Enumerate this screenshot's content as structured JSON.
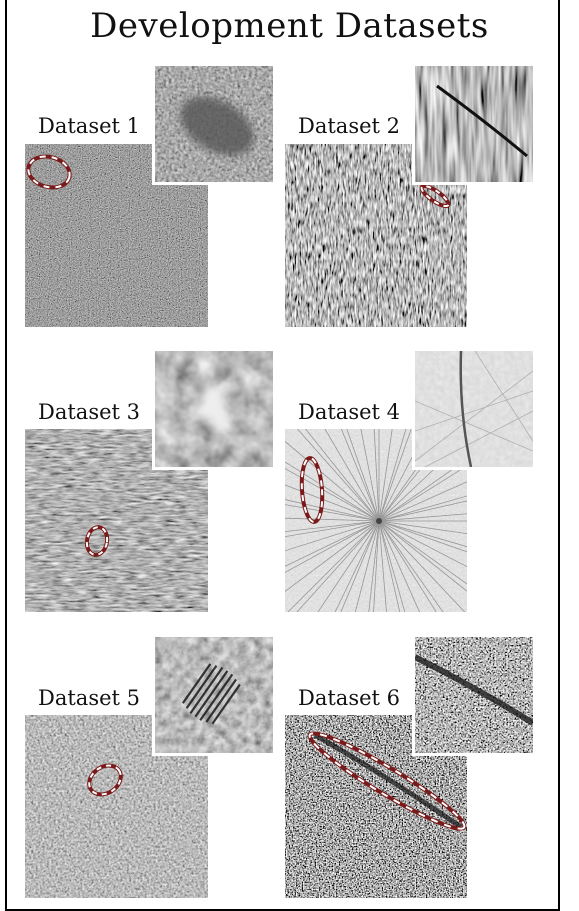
{
  "figure": {
    "title": "Development Datasets",
    "datasets": [
      {
        "label": "Dataset 1"
      },
      {
        "label": "Dataset 2"
      },
      {
        "label": "Dataset 3"
      },
      {
        "label": "Dataset 4"
      },
      {
        "label": "Dataset 5"
      },
      {
        "label": "Dataset 6"
      }
    ]
  },
  "colors": {
    "annotation_outline": "#7a1a1a",
    "annotation_dash": "#ffffff",
    "frame": "#000000"
  }
}
